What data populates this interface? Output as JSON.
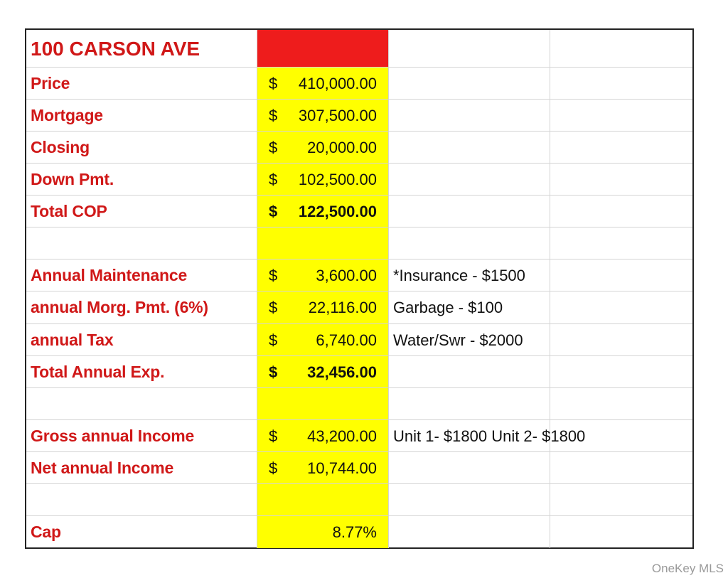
{
  "title": "100 CARSON AVE",
  "rows": [
    {
      "label": "Price",
      "currency": "$",
      "amount": "410,000.00"
    },
    {
      "label": "Mortgage",
      "currency": "$",
      "amount": "307,500.00"
    },
    {
      "label": "Closing",
      "currency": "$",
      "amount": "20,000.00"
    },
    {
      "label": "Down Pmt.",
      "currency": "$",
      "amount": "102,500.00"
    },
    {
      "label": "Total COP",
      "currency": "$",
      "amount": "122,500.00",
      "bold": true
    },
    {},
    {
      "label": "Annual Maintenance",
      "currency": "$",
      "amount": "3,600.00",
      "note": "*Insurance - $1500"
    },
    {
      "label": "annual Morg. Pmt. (6%)",
      "currency": "$",
      "amount": "22,116.00",
      "note": "Garbage - $100"
    },
    {
      "label": "annual Tax",
      "currency": "$",
      "amount": "6,740.00",
      "note": "Water/Swr - $2000"
    },
    {
      "label": "Total Annual Exp.",
      "currency": "$",
      "amount": "32,456.00",
      "bold": true
    },
    {},
    {
      "label": "Gross annual Income",
      "currency": "$",
      "amount": "43,200.00",
      "note": "Unit 1- $1800 Unit 2- $1800"
    },
    {
      "label": "Net annual Income",
      "currency": "$",
      "amount": "10,744.00"
    },
    {},
    {
      "label": "Cap",
      "amount": "8.77%"
    }
  ],
  "watermark": "OneKey MLS"
}
